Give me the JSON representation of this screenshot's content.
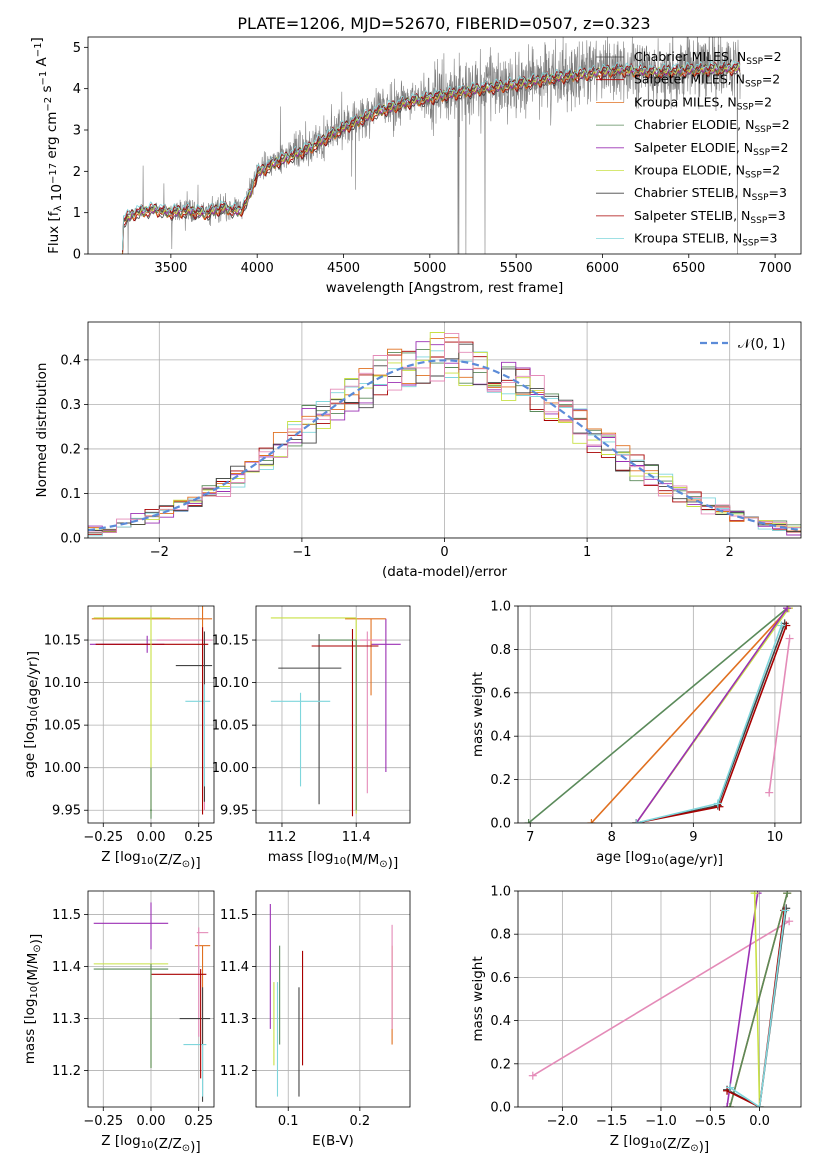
{
  "figure": {
    "title": "PLATE=1206, MJD=52670, FIBERID=0507, z=0.323"
  },
  "colors": {
    "c1": "#5a8a5a",
    "c2": "#9b30b4",
    "c3": "#c8e044",
    "c4": "#444444",
    "c5": "#a80000",
    "c6": "#7fd6dc",
    "c7": "#e07020",
    "c8": "#e48bb8",
    "gray": "#808080",
    "normal": "#5b8bd8",
    "grid": "#b0b0b0"
  },
  "chart_data": [
    {
      "id": "spectrum",
      "type": "line",
      "title": "PLATE=1206, MJD=52670, FIBERID=0507, z=0.323",
      "xlabel": "wavelength [Angstrom, rest frame]",
      "ylabel": "Flux [f_λ 10^-17 erg cm^-2 s^-1 A^-1]",
      "xlim": [
        3020,
        7150
      ],
      "ylim": [
        0,
        5.25
      ],
      "xticks": [
        3500,
        4000,
        4500,
        5000,
        5500,
        6000,
        6500,
        7000
      ],
      "yticks": [
        0,
        1,
        2,
        3,
        4,
        5
      ],
      "grid": false,
      "legend": "top-right",
      "observed_continuum": [
        [
          3220,
          0
        ],
        [
          3225,
          0.85
        ],
        [
          3300,
          1.02
        ],
        [
          3400,
          1.1
        ],
        [
          3500,
          1.0
        ],
        [
          3600,
          1.08
        ],
        [
          3700,
          1.0
        ],
        [
          3800,
          1.15
        ],
        [
          3900,
          1.05
        ],
        [
          3950,
          1.4
        ],
        [
          4000,
          2.0
        ],
        [
          4100,
          2.25
        ],
        [
          4300,
          2.6
        ],
        [
          4500,
          3.1
        ],
        [
          4700,
          3.5
        ],
        [
          4900,
          3.75
        ],
        [
          5100,
          3.9
        ],
        [
          5300,
          4.05
        ],
        [
          5500,
          4.15
        ],
        [
          5700,
          4.3
        ],
        [
          5900,
          4.4
        ],
        [
          6100,
          4.5
        ],
        [
          6300,
          4.45
        ],
        [
          6500,
          4.5
        ],
        [
          6800,
          4.55
        ]
      ],
      "model_continuum": [
        [
          3220,
          0
        ],
        [
          3225,
          0.82
        ],
        [
          3300,
          1.0
        ],
        [
          3400,
          1.08
        ],
        [
          3500,
          1.0
        ],
        [
          3600,
          1.05
        ],
        [
          3700,
          0.98
        ],
        [
          3800,
          1.12
        ],
        [
          3900,
          1.02
        ],
        [
          3950,
          1.35
        ],
        [
          4000,
          1.95
        ],
        [
          4100,
          2.2
        ],
        [
          4300,
          2.55
        ],
        [
          4500,
          3.05
        ],
        [
          4700,
          3.45
        ],
        [
          4900,
          3.7
        ],
        [
          5100,
          3.85
        ],
        [
          5300,
          4.0
        ],
        [
          5500,
          4.1
        ],
        [
          5700,
          4.25
        ],
        [
          5900,
          4.35
        ],
        [
          6100,
          4.45
        ],
        [
          6300,
          4.4
        ],
        [
          6500,
          4.45
        ],
        [
          6800,
          4.5
        ]
      ],
      "series": [
        {
          "name": "Chabrier MILES, N_SSP=2",
          "color": "c4",
          "label_main": "Chabrier MILES, N",
          "label_sub": "SSP",
          "label_tail": "=2"
        },
        {
          "name": "Salpeter MILES, N_SSP=2",
          "color": "c5",
          "label_main": "Salpeter MILES, N",
          "label_sub": "SSP",
          "label_tail": "=2"
        },
        {
          "name": "Kroupa MILES, N_SSP=2",
          "color": "c7",
          "label_main": "Kroupa MILES, N",
          "label_sub": "SSP",
          "label_tail": "=2"
        },
        {
          "name": "Chabrier ELODIE, N_SSP=2",
          "color": "c1",
          "label_main": "Chabrier ELODIE, N",
          "label_sub": "SSP",
          "label_tail": "=2"
        },
        {
          "name": "Salpeter ELODIE, N_SSP=2",
          "color": "c2",
          "label_main": "Salpeter ELODIE, N",
          "label_sub": "SSP",
          "label_tail": "=2"
        },
        {
          "name": "Kroupa ELODIE, N_SSP=2",
          "color": "c3",
          "label_main": "Kroupa ELODIE, N",
          "label_sub": "SSP",
          "label_tail": "=2"
        },
        {
          "name": "Chabrier STELIB, N_SSP=3",
          "color": "c4",
          "label_main": "Chabrier STELIB, N",
          "label_sub": "SSP",
          "label_tail": "=3"
        },
        {
          "name": "Salpeter STELIB, N_SSP=3",
          "color": "c5",
          "label_main": "Salpeter STELIB, N",
          "label_sub": "SSP",
          "label_tail": "=3"
        },
        {
          "name": "Kroupa STELIB, N_SSP=3",
          "color": "c6",
          "label_main": "Kroupa STELIB, N",
          "label_sub": "SSP",
          "label_tail": "=3"
        }
      ]
    },
    {
      "id": "residuals",
      "type": "line",
      "xlabel": "(data-model)/error",
      "ylabel": "Normed distribution",
      "xlim": [
        -2.5,
        2.5
      ],
      "ylim": [
        0,
        0.485
      ],
      "xticks": [
        -2,
        -1,
        0,
        1,
        2
      ],
      "yticks": [
        0.0,
        0.1,
        0.2,
        0.3,
        0.4
      ],
      "grid": true,
      "legend": "top-right",
      "normal_label": "𝒩(0, 1)",
      "bin_width": 0.1,
      "hist_colors": [
        "c1",
        "c5",
        "c6",
        "c2",
        "c7",
        "c3",
        "c4",
        "c8"
      ]
    },
    {
      "id": "age_vs_Z",
      "type": "scatter",
      "xlabel": "Z [log10(Z/Z☉)]",
      "ylabel": "age [log10(age/yr)]",
      "xlim": [
        -0.33,
        0.33
      ],
      "ylim": [
        9.935,
        10.19
      ],
      "xticks": [
        -0.25,
        0.0,
        0.25
      ],
      "yticks": [
        9.95,
        10.0,
        10.05,
        10.1,
        10.15
      ],
      "grid": true,
      "points": [
        {
          "x": -0.02,
          "y": 10.145,
          "xerr": [
            0.3,
            0.09
          ],
          "yerr": [
            0.01,
            0.01
          ],
          "color": "c2"
        },
        {
          "x": 0.27,
          "y": 10.175,
          "xerr": [
            0.58,
            0.05
          ],
          "yerr": [
            0.1,
            0.05
          ],
          "color": "c7"
        },
        {
          "x": 0.28,
          "y": 10.15,
          "xerr": [
            0.25,
            0.04
          ],
          "yerr": [
            0.2,
            0.01
          ],
          "color": "c8"
        },
        {
          "x": 0.28,
          "y": 10.12,
          "xerr": [
            0.15,
            0.04
          ],
          "yerr": [
            0.16,
            0.04
          ],
          "color": "c4"
        },
        {
          "x": 0.28,
          "y": 10.078,
          "xerr": [
            0.1,
            0.03
          ],
          "yerr": [
            0.1,
            0.02
          ],
          "color": "c6"
        },
        {
          "x": 0.27,
          "y": 10.145,
          "xerr": [
            0.56,
            0.03
          ],
          "yerr": [
            0.2,
            0.02
          ],
          "color": "c5"
        },
        {
          "x": 0.0,
          "y": 10.176,
          "xerr": [
            0.3,
            0.1
          ],
          "yerr": [
            0.23,
            0.01
          ],
          "color": "c3"
        },
        {
          "x": 0.0,
          "y": 9.95,
          "xerr": [
            0.005,
            0.005
          ],
          "yerr": [
            0.01,
            0.05
          ],
          "color": "c1"
        }
      ]
    },
    {
      "id": "age_vs_mass",
      "type": "scatter",
      "xlabel": "mass [log10(M/M☉)]",
      "ylabel": "",
      "xlim": [
        11.13,
        11.545
      ],
      "ylim": [
        9.935,
        10.19
      ],
      "xticks": [
        11.2,
        11.4
      ],
      "yticks": [
        9.95,
        10.0,
        10.05,
        10.1,
        10.15
      ],
      "grid": true,
      "points": [
        {
          "x": 11.48,
          "y": 10.145,
          "xerr": [
            0.04,
            0.04
          ],
          "yerr": [
            0.15,
            0.03
          ],
          "color": "c2"
        },
        {
          "x": 11.44,
          "y": 10.175,
          "xerr": [
            0.07,
            0.04
          ],
          "yerr": [
            0.09,
            0.0
          ],
          "color": "c7"
        },
        {
          "x": 11.43,
          "y": 10.15,
          "xerr": [
            0.02,
            0.04
          ],
          "yerr": [
            0.18,
            0.01
          ],
          "color": "c8"
        },
        {
          "x": 11.3,
          "y": 10.117,
          "xerr": [
            0.11,
            0.06
          ],
          "yerr": [
            0.16,
            0.04
          ],
          "color": "c4"
        },
        {
          "x": 11.25,
          "y": 10.078,
          "xerr": [
            0.08,
            0.08
          ],
          "yerr": [
            0.1,
            0.01
          ],
          "color": "c6"
        },
        {
          "x": 11.39,
          "y": 10.143,
          "xerr": [
            0.11,
            0.07
          ],
          "yerr": [
            0.2,
            0.02
          ],
          "color": "c5"
        },
        {
          "x": 11.4,
          "y": 10.176,
          "xerr": [
            0.23,
            0.0
          ],
          "yerr": [
            0.23,
            0.0
          ],
          "color": "c3"
        },
        {
          "x": 11.4,
          "y": 10.15,
          "xerr": [
            0.1,
            0.0
          ],
          "yerr": [
            0.2,
            0.0
          ],
          "color": "c1"
        }
      ]
    },
    {
      "id": "weight_vs_age",
      "type": "line",
      "xlabel": "age  [log10(age/yr)]",
      "ylabel": "mass weight",
      "xlim": [
        6.85,
        10.32
      ],
      "ylim": [
        0,
        1.0
      ],
      "xticks": [
        7,
        8,
        9,
        10
      ],
      "yticks": [
        0.0,
        0.2,
        0.4,
        0.6,
        0.8,
        1.0
      ],
      "grid": true,
      "series": [
        {
          "color": "c1",
          "points": [
            [
              6.98,
              0.0
            ],
            [
              10.15,
              0.99
            ]
          ]
        },
        {
          "color": "c7",
          "points": [
            [
              7.75,
              0.0
            ],
            [
              10.17,
              0.99
            ]
          ]
        },
        {
          "color": "c3",
          "points": [
            [
              8.3,
              0.0
            ],
            [
              10.17,
              0.99
            ]
          ]
        },
        {
          "color": "c2",
          "points": [
            [
              8.3,
              0.0
            ],
            [
              10.15,
              0.99
            ]
          ]
        },
        {
          "color": "c4",
          "points": [
            [
              8.3,
              0.0
            ],
            [
              9.3,
              0.08
            ],
            [
              10.12,
              0.92
            ]
          ]
        },
        {
          "color": "c5",
          "points": [
            [
              8.3,
              0.0
            ],
            [
              9.32,
              0.075
            ],
            [
              10.14,
              0.91
            ]
          ]
        },
        {
          "color": "c6",
          "points": [
            [
              8.3,
              0.0
            ],
            [
              9.3,
              0.09
            ],
            [
              10.08,
              0.91
            ]
          ]
        },
        {
          "color": "c8",
          "points": [
            [
              9.93,
              0.14
            ],
            [
              10.18,
              0.85
            ]
          ]
        }
      ]
    },
    {
      "id": "mass_vs_Z",
      "type": "scatter",
      "xlabel": "Z [log10(Z/Z☉)]",
      "ylabel": "mass [log10(M/M☉)]",
      "xlim": [
        -0.33,
        0.33
      ],
      "ylim": [
        11.13,
        11.545
      ],
      "xticks": [
        -0.25,
        0.0,
        0.25
      ],
      "yticks": [
        11.2,
        11.3,
        11.4,
        11.5
      ],
      "grid": true,
      "points": [
        {
          "x": 0.0,
          "y": 11.483,
          "xerr": [
            0.3,
            0.09
          ],
          "yerr": [
            0.05,
            0.04
          ],
          "color": "c2"
        },
        {
          "x": 0.27,
          "y": 11.44,
          "xerr": [
            0.04,
            0.04
          ],
          "yerr": [
            0.19,
            0.0
          ],
          "color": "c7"
        },
        {
          "x": 0.25,
          "y": 11.465,
          "xerr": [
            0.01,
            0.05
          ],
          "yerr": [
            0.2,
            0.01
          ],
          "color": "c8"
        },
        {
          "x": 0.27,
          "y": 11.3,
          "xerr": [
            0.12,
            0.04
          ],
          "yerr": [
            0.16,
            0.06
          ],
          "color": "c4"
        },
        {
          "x": 0.27,
          "y": 11.25,
          "xerr": [
            0.1,
            0.02
          ],
          "yerr": [
            0.1,
            0.0
          ],
          "color": "c6"
        },
        {
          "x": 0.26,
          "y": 11.385,
          "xerr": [
            0.26,
            0.03
          ],
          "yerr": [
            0.2,
            0.01
          ],
          "color": "c5"
        },
        {
          "x": 0.0,
          "y": 11.405,
          "xerr": [
            0.3,
            0.09
          ],
          "yerr": [
            0.2,
            0.0
          ],
          "color": "c3"
        },
        {
          "x": 0.0,
          "y": 11.395,
          "xerr": [
            0.3,
            0.09
          ],
          "yerr": [
            0.19,
            0.01
          ],
          "color": "c1"
        }
      ]
    },
    {
      "id": "mass_vs_EBV",
      "type": "scatter",
      "xlabel": "E(B-V)",
      "ylabel": "",
      "xlim": [
        0.055,
        0.27
      ],
      "ylim": [
        11.13,
        11.545
      ],
      "xticks": [
        0.1,
        0.2
      ],
      "yticks": [
        11.2,
        11.3,
        11.4,
        11.5
      ],
      "grid": true,
      "points": [
        {
          "x": 0.075,
          "y": 11.38,
          "xerr": [
            0,
            0
          ],
          "yerr": [
            0.1,
            0.14
          ],
          "color": "c2"
        },
        {
          "x": 0.08,
          "y": 11.3,
          "xerr": [
            0,
            0
          ],
          "yerr": [
            0.09,
            0.07
          ],
          "color": "c3"
        },
        {
          "x": 0.085,
          "y": 11.3,
          "xerr": [
            0,
            0
          ],
          "yerr": [
            0.15,
            0.07
          ],
          "color": "c6"
        },
        {
          "x": 0.088,
          "y": 11.35,
          "xerr": [
            0,
            0
          ],
          "yerr": [
            0.1,
            0.09
          ],
          "color": "c1"
        },
        {
          "x": 0.115,
          "y": 11.25,
          "xerr": [
            0,
            0
          ],
          "yerr": [
            0.1,
            0.11
          ],
          "color": "c4"
        },
        {
          "x": 0.12,
          "y": 11.3,
          "xerr": [
            0,
            0
          ],
          "yerr": [
            0.09,
            0.13
          ],
          "color": "c5"
        },
        {
          "x": 0.245,
          "y": 11.37,
          "xerr": [
            0,
            0
          ],
          "yerr": [
            0.12,
            0.07
          ],
          "color": "c7"
        },
        {
          "x": 0.245,
          "y": 11.4,
          "xerr": [
            0,
            0
          ],
          "yerr": [
            0.12,
            0.08
          ],
          "color": "c8"
        }
      ]
    },
    {
      "id": "weight_vs_Z",
      "type": "line",
      "xlabel": "Z [log10(Z/Z☉)]",
      "ylabel": "mass weight",
      "xlim": [
        -2.45,
        0.42
      ],
      "ylim": [
        0,
        1.0
      ],
      "xticks": [
        -2.0,
        -1.5,
        -1.0,
        -0.5,
        0.0
      ],
      "yticks": [
        0.0,
        0.2,
        0.4,
        0.6,
        0.8,
        1.0
      ],
      "grid": true,
      "series": [
        {
          "color": "c8",
          "points": [
            [
              -2.3,
              0.145
            ],
            [
              0.3,
              0.86
            ]
          ]
        },
        {
          "color": "c2",
          "points": [
            [
              -0.33,
              0.0
            ],
            [
              -0.02,
              0.99
            ]
          ]
        },
        {
          "color": "c3",
          "points": [
            [
              0.0,
              0.0
            ],
            [
              -0.05,
              0.99
            ]
          ]
        },
        {
          "color": "c7",
          "points": [
            [
              -0.3,
              0.0
            ],
            [
              0.28,
              0.99
            ]
          ]
        },
        {
          "color": "c1",
          "points": [
            [
              -0.3,
              0.0
            ],
            [
              0.28,
              0.99
            ]
          ]
        },
        {
          "color": "c4",
          "points": [
            [
              -0.33,
              0.08
            ],
            [
              0.0,
              0.0
            ],
            [
              0.27,
              0.92
            ]
          ]
        },
        {
          "color": "c5",
          "points": [
            [
              -0.33,
              0.075
            ],
            [
              0.0,
              0.0
            ],
            [
              0.25,
              0.91
            ]
          ]
        },
        {
          "color": "c6",
          "points": [
            [
              -0.3,
              0.09
            ],
            [
              0.0,
              0.0
            ],
            [
              0.26,
              0.91
            ]
          ]
        }
      ]
    }
  ]
}
